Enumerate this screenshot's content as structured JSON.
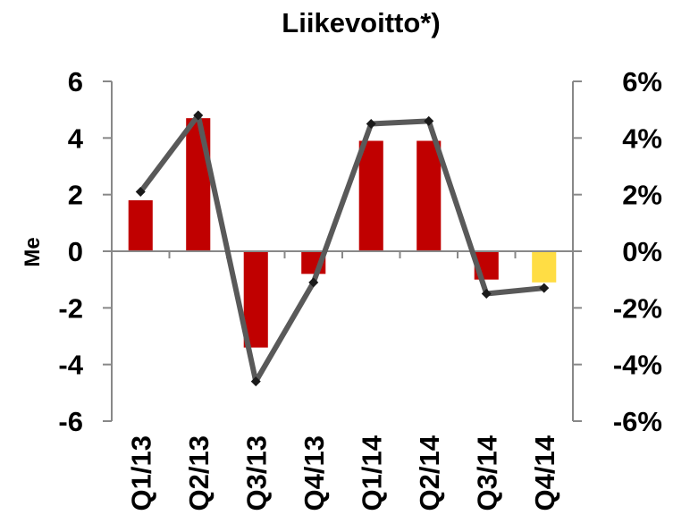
{
  "chart_data": {
    "type": "bar",
    "title": "Liikevoitto*)",
    "categories": [
      "Q1/13",
      "Q2/13",
      "Q3/13",
      "Q4/13",
      "Q1/14",
      "Q2/14",
      "Q3/14",
      "Q4/14"
    ],
    "ylabel": "Me",
    "ylim": [
      -6,
      6
    ],
    "yticks": [
      "6",
      "4",
      "2",
      "0",
      "-2",
      "-4",
      "-6"
    ],
    "y2lim": [
      -6,
      6
    ],
    "y2ticks": [
      "6%",
      "4%",
      "2%",
      "0%",
      "-2%",
      "-4%",
      "-6%"
    ],
    "series": [
      {
        "type": "bar",
        "axis": "left",
        "values": [
          1.8,
          4.7,
          -3.4,
          -0.8,
          3.9,
          3.9,
          -1.0,
          -1.1
        ],
        "colors": [
          "#c00000",
          "#c00000",
          "#c00000",
          "#c00000",
          "#c00000",
          "#c00000",
          "#c00000",
          "#ffdd44"
        ]
      },
      {
        "type": "line",
        "axis": "right",
        "values": [
          2.1,
          4.8,
          -4.6,
          -1.1,
          4.5,
          4.6,
          -1.5,
          -1.3
        ],
        "color": "#595959",
        "marker_color": "#1a1a1a"
      }
    ],
    "grid": false,
    "legend": "none"
  }
}
